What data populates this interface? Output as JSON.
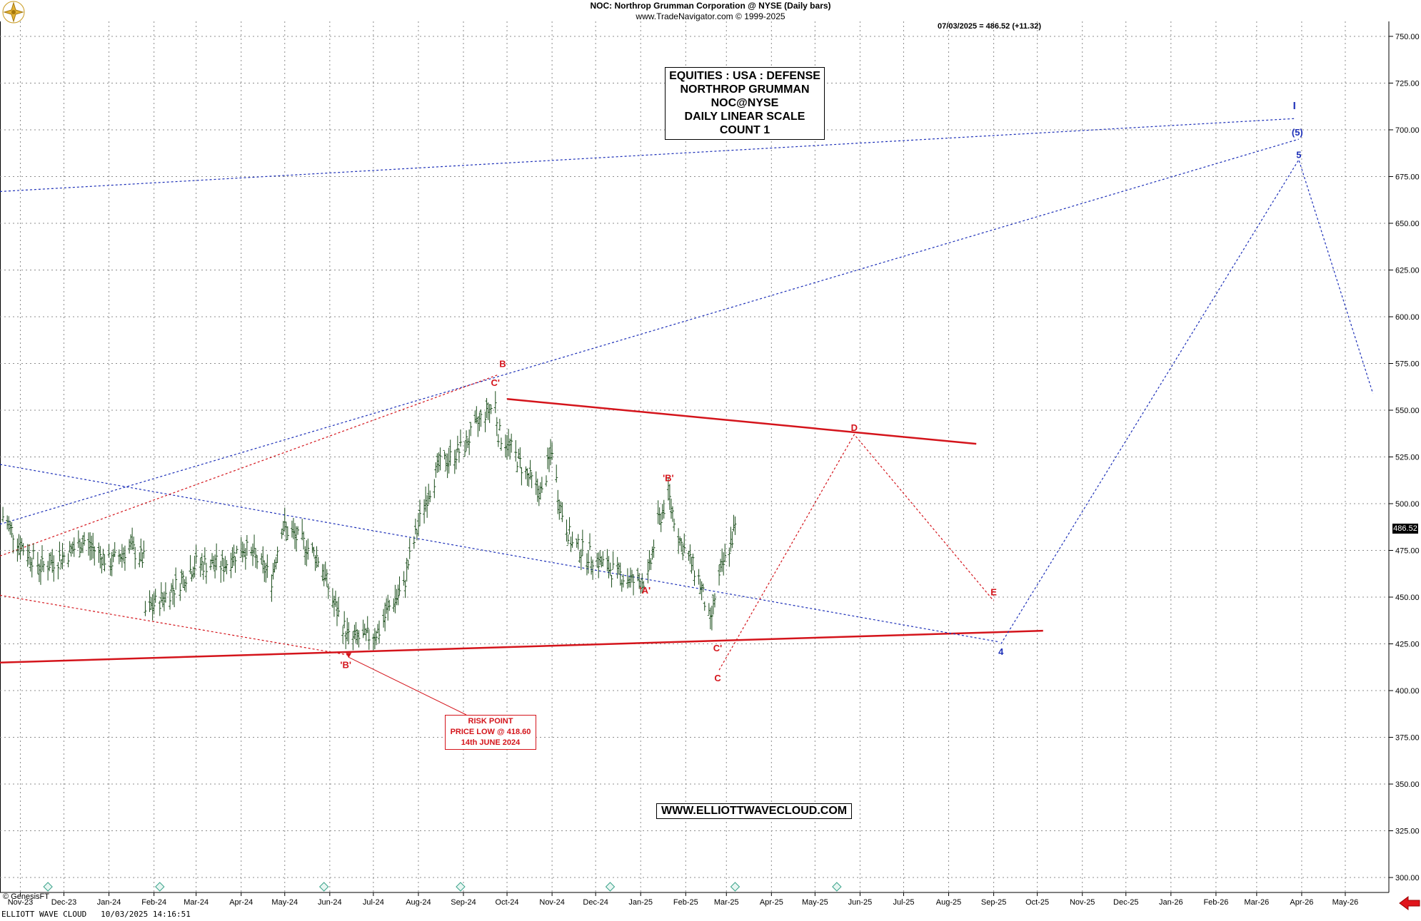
{
  "header": {
    "line1": "NOC:  Northrop Grumman Corporation @ NYSE  (Daily bars)",
    "line2": "www.TradeNavigator.com © 1999-2025",
    "last_price": "07/03/2025 = 486.52 (+11.32)"
  },
  "title_box": [
    "EQUITIES : USA : DEFENSE",
    "NORTHROP GRUMMAN",
    "NOC@NYSE",
    "DAILY LINEAR SCALE",
    "COUNT 1"
  ],
  "website": "WWW.ELLIOTTWAVECLOUD.COM",
  "risk_box": [
    "RISK POINT",
    "PRICE LOW @ 418.60",
    "14th JUNE 2024"
  ],
  "price_tag": "486.52",
  "genesis": "© GenesisFT",
  "footer": "ELLIOTT WAVE CLOUD   10/03/2025 14:16:51",
  "chart_data": {
    "type": "line",
    "title": "NOC:  Northrop Grumman Corporation @ NYSE  (Daily bars)",
    "y_axis": {
      "ticks": [
        300,
        325,
        350,
        375,
        400,
        425,
        450,
        475,
        500,
        525,
        550,
        575,
        600,
        625,
        650,
        675,
        700,
        725,
        750
      ],
      "ylim": [
        292,
        758
      ],
      "position": "right"
    },
    "x_axis": {
      "labels": [
        "Nov-23",
        "Dec-23",
        "Jan-24",
        "Feb-24",
        "Mar-24",
        "Apr-24",
        "May-24",
        "Jun-24",
        "Jul-24",
        "Aug-24",
        "Sep-24",
        "Oct-24",
        "Nov-24",
        "Dec-24",
        "Jan-25",
        "Feb-25",
        "Mar-25",
        "Apr-25",
        "May-25",
        "Jun-25",
        "Jul-25",
        "Aug-25",
        "Sep-25",
        "Oct-25",
        "Nov-25",
        "Dec-25",
        "Jan-26",
        "Feb-26",
        "Mar-26",
        "Apr-26",
        "May-26"
      ],
      "xlim": [
        "2023-10-18",
        "2026-05-31"
      ]
    },
    "grid": true,
    "series": [
      {
        "type": "price-bars",
        "x": [
          "2023-10-20",
          "2023-11-01",
          "2023-11-15",
          "2023-12-01",
          "2023-12-15",
          "2024-01-02",
          "2024-01-15",
          "2024-01-25",
          "2024-01-26",
          "2024-02-15",
          "2024-03-01",
          "2024-03-20",
          "2024-04-02",
          "2024-04-12",
          "2024-04-22",
          "2024-04-29",
          "2024-05-15",
          "2024-05-25",
          "2024-06-03",
          "2024-06-14",
          "2024-06-25",
          "2024-07-05",
          "2024-07-12",
          "2024-07-22",
          "2024-07-25",
          "2024-08-05",
          "2024-08-15",
          "2024-09-01",
          "2024-09-15",
          "2024-09-23",
          "2024-09-25",
          "2024-10-05",
          "2024-10-15",
          "2024-10-25",
          "2024-11-01",
          "2024-11-06",
          "2024-11-15",
          "2024-12-02",
          "2024-12-15",
          "2024-12-28",
          "2025-01-06",
          "2025-01-12",
          "2025-01-20",
          "2025-01-28",
          "2025-02-10",
          "2025-02-18",
          "2025-02-22",
          "2025-03-01",
          "2025-03-07"
        ],
        "close": [
          493,
          478,
          466,
          472,
          480,
          468,
          477,
          470,
          442,
          455,
          468,
          467,
          477,
          470,
          460,
          488,
          478,
          470,
          448,
          428,
          428,
          432,
          445,
          455,
          468,
          500,
          520,
          530,
          548,
          553,
          538,
          528,
          515,
          505,
          530,
          500,
          478,
          470,
          463,
          458,
          460,
          487,
          505,
          480,
          460,
          435,
          455,
          472,
          486.52
        ]
      }
    ],
    "annotations": {
      "wave_labels_red": [
        "B",
        "C'",
        "'B'",
        "'B'",
        "'A'",
        "C'",
        "C",
        "D",
        "E"
      ],
      "wave_labels_blue": [
        "I",
        "(5)",
        "5",
        "4"
      ],
      "projection_red": {
        "x": [
          "2025-02-24",
          "2025-05-28",
          "2025-09-01"
        ],
        "y": [
          411,
          537,
          448
        ]
      },
      "projection_blue": {
        "x": [
          "2025-09-06",
          "2026-03-30",
          "2026-05-20"
        ],
        "y": [
          425,
          684,
          559
        ]
      },
      "trendlines": [
        {
          "color": "red",
          "style": "solid",
          "x": [
            "2024-10-01",
            "2025-08-20"
          ],
          "y": [
            556,
            532
          ]
        },
        {
          "color": "red",
          "style": "solid",
          "x": [
            "2023-10-18",
            "2025-10-05"
          ],
          "y": [
            415,
            432
          ]
        },
        {
          "color": "blue",
          "style": "dotted",
          "x": [
            "2023-10-18",
            "2026-03-27"
          ],
          "y": [
            667,
            706
          ]
        },
        {
          "color": "blue",
          "style": "dotted",
          "x": [
            "2023-10-18",
            "2026-03-30"
          ],
          "y": [
            489,
            695
          ]
        },
        {
          "color": "blue",
          "style": "dotted",
          "x": [
            "2023-10-18",
            "2025-09-05"
          ],
          "y": [
            521,
            426
          ]
        },
        {
          "color": "red",
          "style": "dotted",
          "x": [
            "2023-10-18",
            "2024-09-25"
          ],
          "y": [
            472,
            569
          ]
        },
        {
          "color": "red",
          "style": "dotted",
          "x": [
            "2023-10-18",
            "2024-06-14"
          ],
          "y": [
            451,
            419
          ]
        }
      ]
    }
  }
}
